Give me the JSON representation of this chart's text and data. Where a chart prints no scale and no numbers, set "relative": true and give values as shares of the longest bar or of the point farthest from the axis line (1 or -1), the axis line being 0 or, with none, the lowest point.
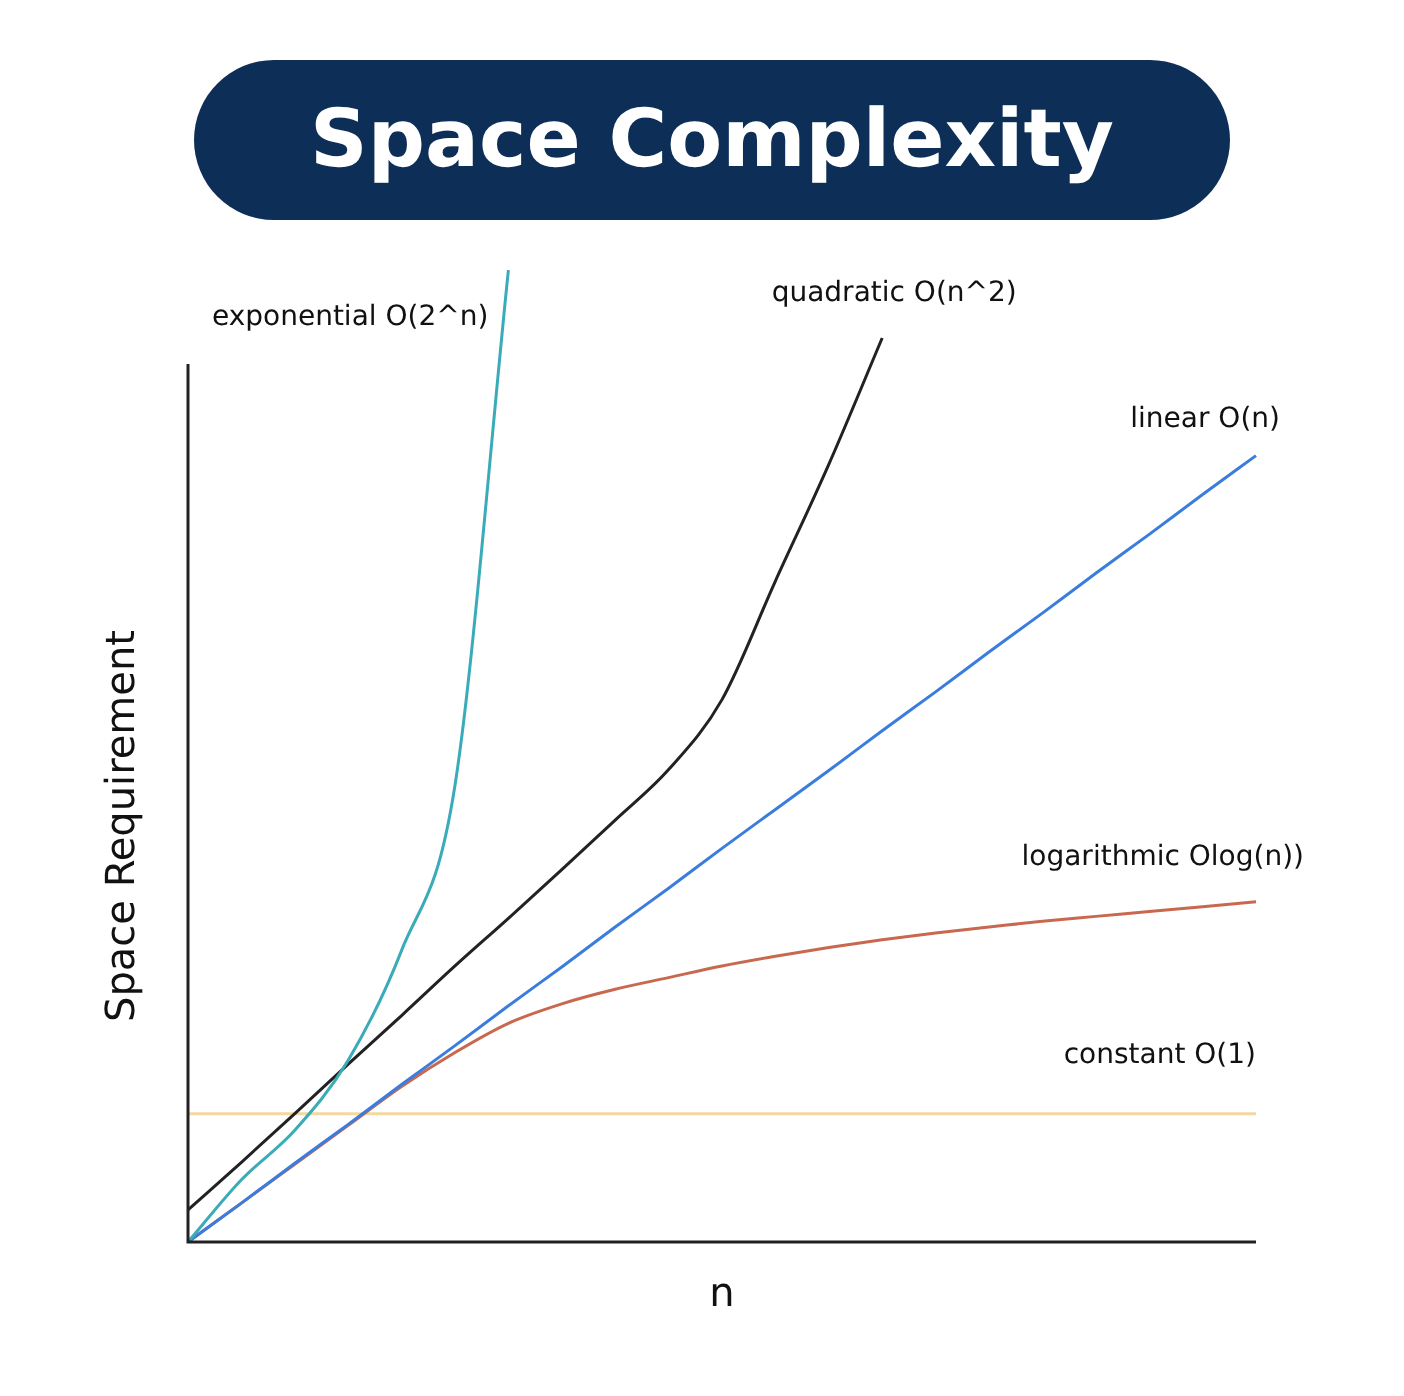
{
  "chart_data": {
    "type": "line",
    "title": "Space Complexity",
    "xlabel": "n",
    "ylabel": "Space Requirement",
    "relative": true,
    "legend": false,
    "marker": "none",
    "categories": [
      null,
      null,
      null,
      null,
      null,
      null,
      null,
      null,
      null,
      null,
      null,
      null,
      null,
      null,
      null,
      null,
      null,
      null,
      null,
      null,
      null
    ],
    "series": [
      {
        "name": "exponential O(2^n)",
        "color": "#3aabb8",
        "values": [
          0,
          0.064,
          0.115,
          0.187,
          0.3,
          0.47,
          1,
          null,
          null,
          null,
          null,
          null,
          null,
          null,
          null,
          null,
          null,
          null,
          null,
          null,
          null
        ]
      },
      {
        "name": "quadratic O(n^2)",
        "color": "#222222",
        "values": [
          0.033,
          0.082,
          0.132,
          0.183,
          0.233,
          0.284,
          0.333,
          0.383,
          0.434,
          0.486,
          0.558,
          0.68,
          0.8,
          0.93,
          null,
          null,
          null,
          null,
          null,
          null,
          null
        ]
      },
      {
        "name": "linear O(n)",
        "color": "#3b7ddd",
        "values": [
          0,
          0.04,
          0.081,
          0.121,
          0.162,
          0.202,
          0.243,
          0.283,
          0.324,
          0.364,
          0.405,
          0.445,
          0.485,
          0.526,
          0.566,
          0.607,
          0.647,
          0.688,
          0.728,
          0.769,
          0.809
        ]
      },
      {
        "name": "logarithmic Olog(n))",
        "color": "#c8694f",
        "values": [
          0,
          0.04,
          0.08,
          0.12,
          0.16,
          0.195,
          0.225,
          0.245,
          0.26,
          0.272,
          0.284,
          0.294,
          0.303,
          0.311,
          0.318,
          0.324,
          0.33,
          0.335,
          0.34,
          0.345,
          0.35
        ]
      },
      {
        "name": "constant O(1)",
        "color": "#f5d7a0",
        "values": [
          0.132,
          0.132,
          0.132,
          0.132,
          0.132,
          0.132,
          0.132,
          0.132,
          0.132,
          0.132,
          0.132,
          0.132,
          0.132,
          0.132,
          0.132,
          0.132,
          0.132,
          0.132,
          0.132,
          0.132,
          0.132
        ]
      }
    ]
  }
}
